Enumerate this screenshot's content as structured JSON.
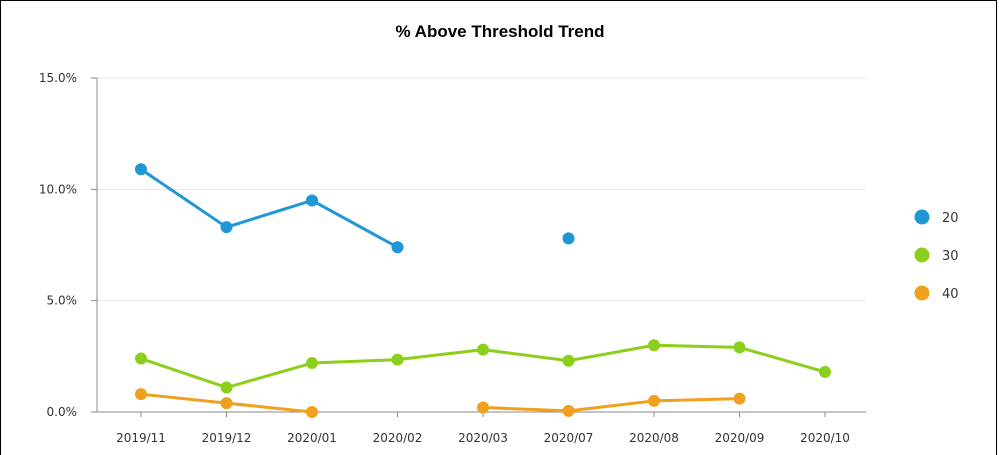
{
  "chart_data": {
    "type": "line",
    "title": "% Above Threshold Trend",
    "xlabel": "",
    "ylabel": "",
    "categories": [
      "2019/11",
      "2019/12",
      "2020/01",
      "2020/02",
      "2020/03",
      "2020/07",
      "2020/08",
      "2020/09",
      "2020/10"
    ],
    "ylim": [
      0,
      15
    ],
    "yticks": [
      0,
      5,
      10,
      15
    ],
    "ytick_labels": [
      "0.0%",
      "5.0%",
      "10.0%",
      "15.0%"
    ],
    "grid": true,
    "legend_position": "right",
    "series": [
      {
        "name": "20",
        "color": "#1f96d6",
        "values": [
          10.9,
          8.3,
          9.5,
          7.4,
          null,
          7.8,
          null,
          null,
          null
        ]
      },
      {
        "name": "30",
        "color": "#8ccf1a",
        "values": [
          2.4,
          1.1,
          2.2,
          2.35,
          2.8,
          2.3,
          3.0,
          2.9,
          1.8
        ]
      },
      {
        "name": "40",
        "color": "#f0a01e",
        "values": [
          0.8,
          0.4,
          0.0,
          null,
          0.2,
          0.05,
          0.5,
          0.6,
          null
        ]
      }
    ]
  }
}
